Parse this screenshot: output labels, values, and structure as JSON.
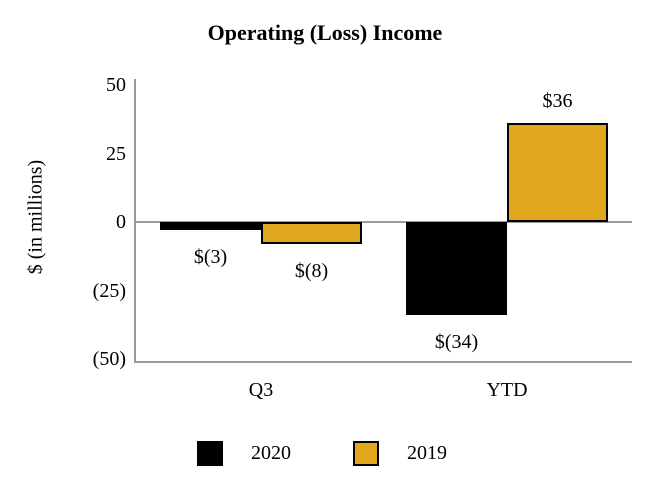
{
  "chart_data": {
    "type": "bar",
    "title": "Operating (Loss) Income",
    "ylabel": "$ (in millions)",
    "categories": [
      "Q3",
      "YTD"
    ],
    "series": [
      {
        "name": "2020",
        "color": "#000000",
        "values": [
          -3,
          -34
        ],
        "labels": [
          "$(3)",
          "$(34)"
        ]
      },
      {
        "name": "2019",
        "color": "#E0A71E",
        "border_color": "#000000",
        "values": [
          -8,
          36
        ],
        "labels": [
          "$(8)",
          "$36"
        ]
      }
    ],
    "yticks": [
      {
        "value": 50,
        "label": "50"
      },
      {
        "value": 25,
        "label": "25"
      },
      {
        "value": 0,
        "label": "0"
      },
      {
        "value": -25,
        "label": "(25)"
      },
      {
        "value": -50,
        "label": "(50)"
      }
    ],
    "ylim": [
      -50,
      50
    ],
    "grid": false,
    "legend_position": "bottom",
    "axis_color": "#9a9a9a",
    "background": "#ffffff"
  }
}
